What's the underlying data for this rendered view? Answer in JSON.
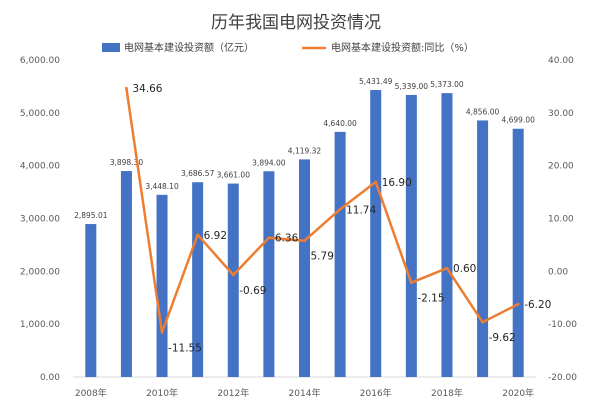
{
  "chart_data": {
    "type": "bar",
    "title": "历年我国电网投资情况",
    "years": [
      "2008年",
      "2009年",
      "2010年",
      "2011年",
      "2012年",
      "2013年",
      "2014年",
      "2015年",
      "2016年",
      "2017年",
      "2018年",
      "2019年",
      "2020年"
    ],
    "x_tick_labels": [
      "2008年",
      "",
      "2010年",
      "",
      "2012年",
      "",
      "2014年",
      "",
      "2016年",
      "",
      "2018年",
      "",
      "2020年"
    ],
    "series": [
      {
        "name": "电网基本建设投资额（亿元）",
        "type": "bar",
        "axis": "left",
        "color": "#4472C4",
        "values": [
          2895.01,
          3898.3,
          3448.1,
          3686.57,
          3661.0,
          3894.0,
          4119.32,
          4640.0,
          5431.49,
          5339.0,
          5373.0,
          4856.0,
          4699.0
        ],
        "value_labels": [
          "2,895.01",
          "3,898.30",
          "3,448.10",
          "3,686.57",
          "3,661.00",
          "3,894.00",
          "4,119.32",
          "4,640.00",
          "5,431.49",
          "5,339.00",
          "5,373.00",
          "4,856.00",
          "4,699.00"
        ]
      },
      {
        "name": "电网基本建设投资额:同比（%）",
        "type": "line",
        "axis": "right",
        "color": "#ED7D31",
        "values": [
          null,
          34.66,
          -11.55,
          6.92,
          -0.69,
          6.36,
          5.79,
          11.74,
          16.9,
          -2.15,
          0.6,
          -9.62,
          -6.2
        ],
        "value_labels": [
          "",
          "34.66",
          "-11.55",
          "6.92",
          "-0.69",
          "6.36",
          "5.79",
          "11.74",
          "16.90",
          "-2.15",
          "0.60",
          "-9.62",
          "-6.20"
        ]
      }
    ],
    "y_left": {
      "min": 0,
      "max": 6000,
      "step": 1000,
      "tick_labels": [
        "0.00",
        "1,000.00",
        "2,000.00",
        "3,000.00",
        "4,000.00",
        "5,000.00",
        "6,000.00"
      ]
    },
    "y_right": {
      "min": -20,
      "max": 40,
      "step": 10,
      "tick_labels": [
        "-20.00",
        "-10.00",
        "0.00",
        "10.00",
        "20.00",
        "30.00",
        "40.00"
      ]
    },
    "legend": {
      "placement": "top"
    },
    "grid": false
  }
}
